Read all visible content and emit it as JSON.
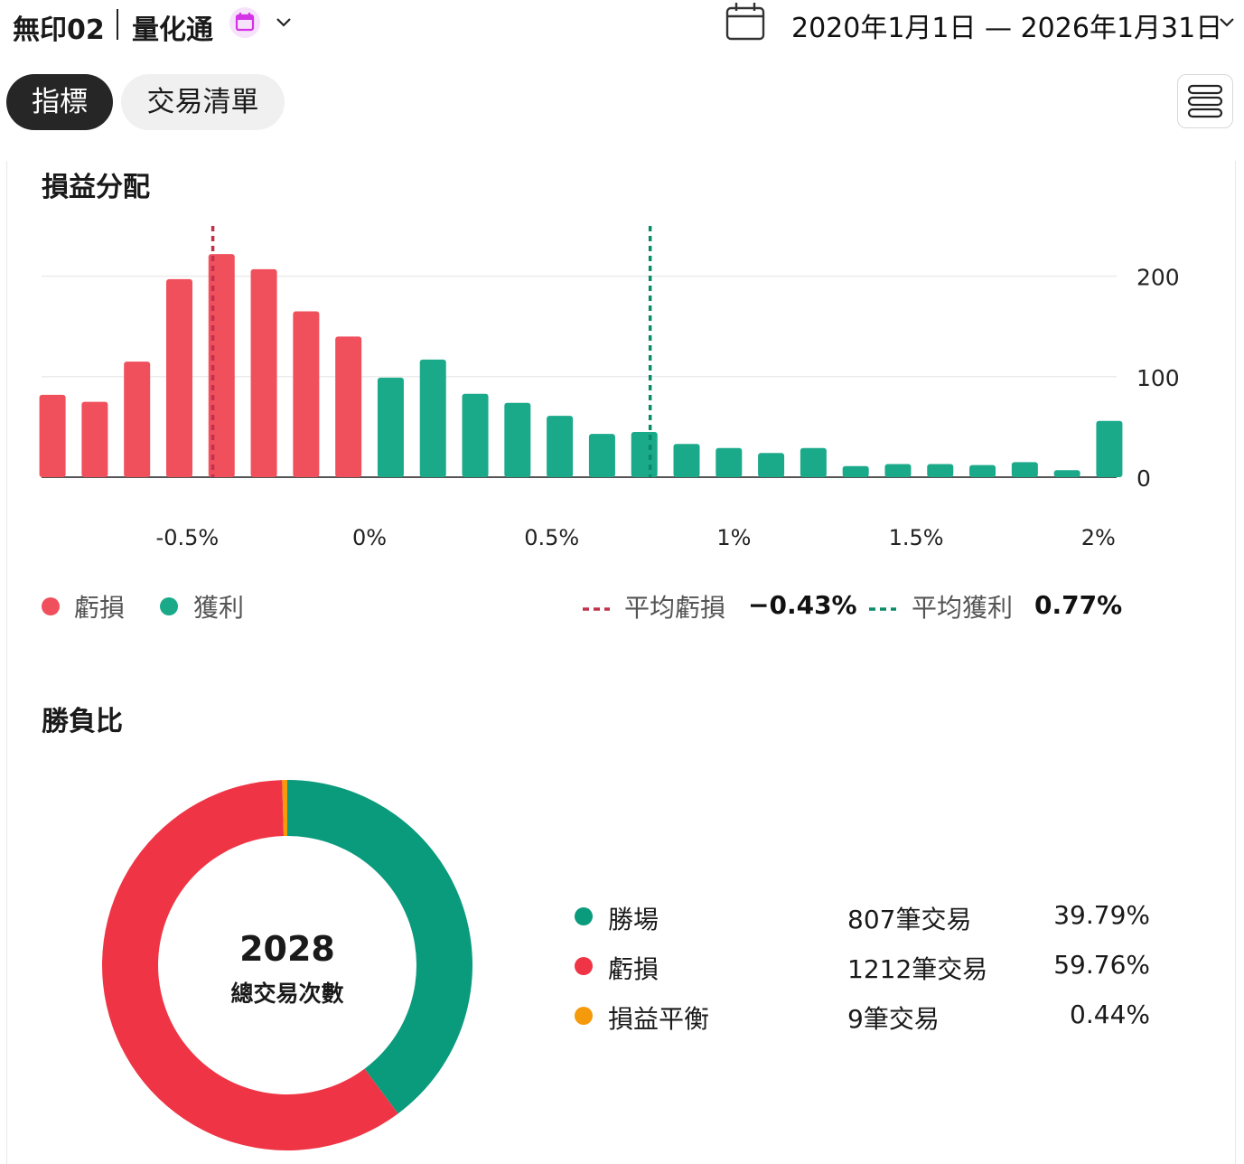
{
  "header": {
    "strategy_name": "無印02",
    "product_name": "量化通",
    "date_range": "2020年1月1日 — 2026年1月31日"
  },
  "tabs": [
    {
      "label": "指標",
      "active": true
    },
    {
      "label": "交易清單",
      "active": false
    }
  ],
  "pnl_section": {
    "title": "損益分配",
    "legend": {
      "loss_label": "虧損",
      "profit_label": "獲利",
      "avg_loss_label": "平均虧損",
      "avg_loss_value": "−0.43%",
      "avg_profit_label": "平均獲利",
      "avg_profit_value": "0.77%"
    }
  },
  "chart_data": {
    "type": "bar",
    "title": "損益分配",
    "xlabel": "",
    "ylabel": "",
    "xlim": [
      -0.9,
      2.05
    ],
    "ylim": [
      0,
      250
    ],
    "x_ticks": [
      -0.5,
      0,
      0.5,
      1,
      1.5,
      2
    ],
    "x_tick_labels": [
      "-0.5%",
      "0%",
      "0.5%",
      "1%",
      "1.5%",
      "2%"
    ],
    "y_ticks": [
      0,
      100,
      200
    ],
    "y_tick_labels": [
      "0",
      "100",
      "200"
    ],
    "grid": true,
    "bin_width": 0.116,
    "series": [
      {
        "name": "虧損",
        "color": "#f0505c",
        "x": [
          -0.87,
          -0.754,
          -0.638,
          -0.522,
          -0.406,
          -0.29,
          -0.174,
          -0.058
        ],
        "values": [
          82,
          75,
          115,
          197,
          222,
          207,
          165,
          140
        ]
      },
      {
        "name": "獲利",
        "color": "#1aaa8a",
        "x": [
          0.058,
          0.174,
          0.29,
          0.406,
          0.522,
          0.638,
          0.754,
          0.87,
          0.986,
          1.102,
          1.218,
          1.334,
          1.45,
          1.566,
          1.682,
          1.798,
          1.914,
          2.03
        ],
        "values": [
          99,
          117,
          83,
          74,
          61,
          43,
          45,
          33,
          29,
          24,
          29,
          11,
          13,
          13,
          12,
          15,
          7,
          56
        ]
      }
    ],
    "reference_lines": [
      {
        "name": "平均虧損",
        "x": -0.43,
        "color": "#c0314a"
      },
      {
        "name": "平均獲利",
        "x": 0.77,
        "color": "#0b8a68"
      }
    ]
  },
  "winloss_section": {
    "title": "勝負比",
    "total_value": "2028",
    "total_label": "總交易次數",
    "rows": [
      {
        "label": "勝場",
        "count_text": "807筆交易",
        "pct_text": "39.79%",
        "color": "#0a9a7c"
      },
      {
        "label": "虧損",
        "count_text": "1212筆交易",
        "pct_text": "59.76%",
        "color": "#ef3545"
      },
      {
        "label": "損益平衡",
        "count_text": "9筆交易",
        "pct_text": "0.44%",
        "color": "#f59a0a"
      }
    ],
    "donut_values": [
      807,
      1212,
      9
    ]
  },
  "colors": {
    "loss_bar": "#f0505c",
    "profit_bar": "#1aaa8a",
    "win": "#0a9a7c",
    "loss": "#ef3545",
    "even": "#f59a0a",
    "avg_loss_line": "#c0314a",
    "avg_profit_line": "#0b8a68"
  }
}
